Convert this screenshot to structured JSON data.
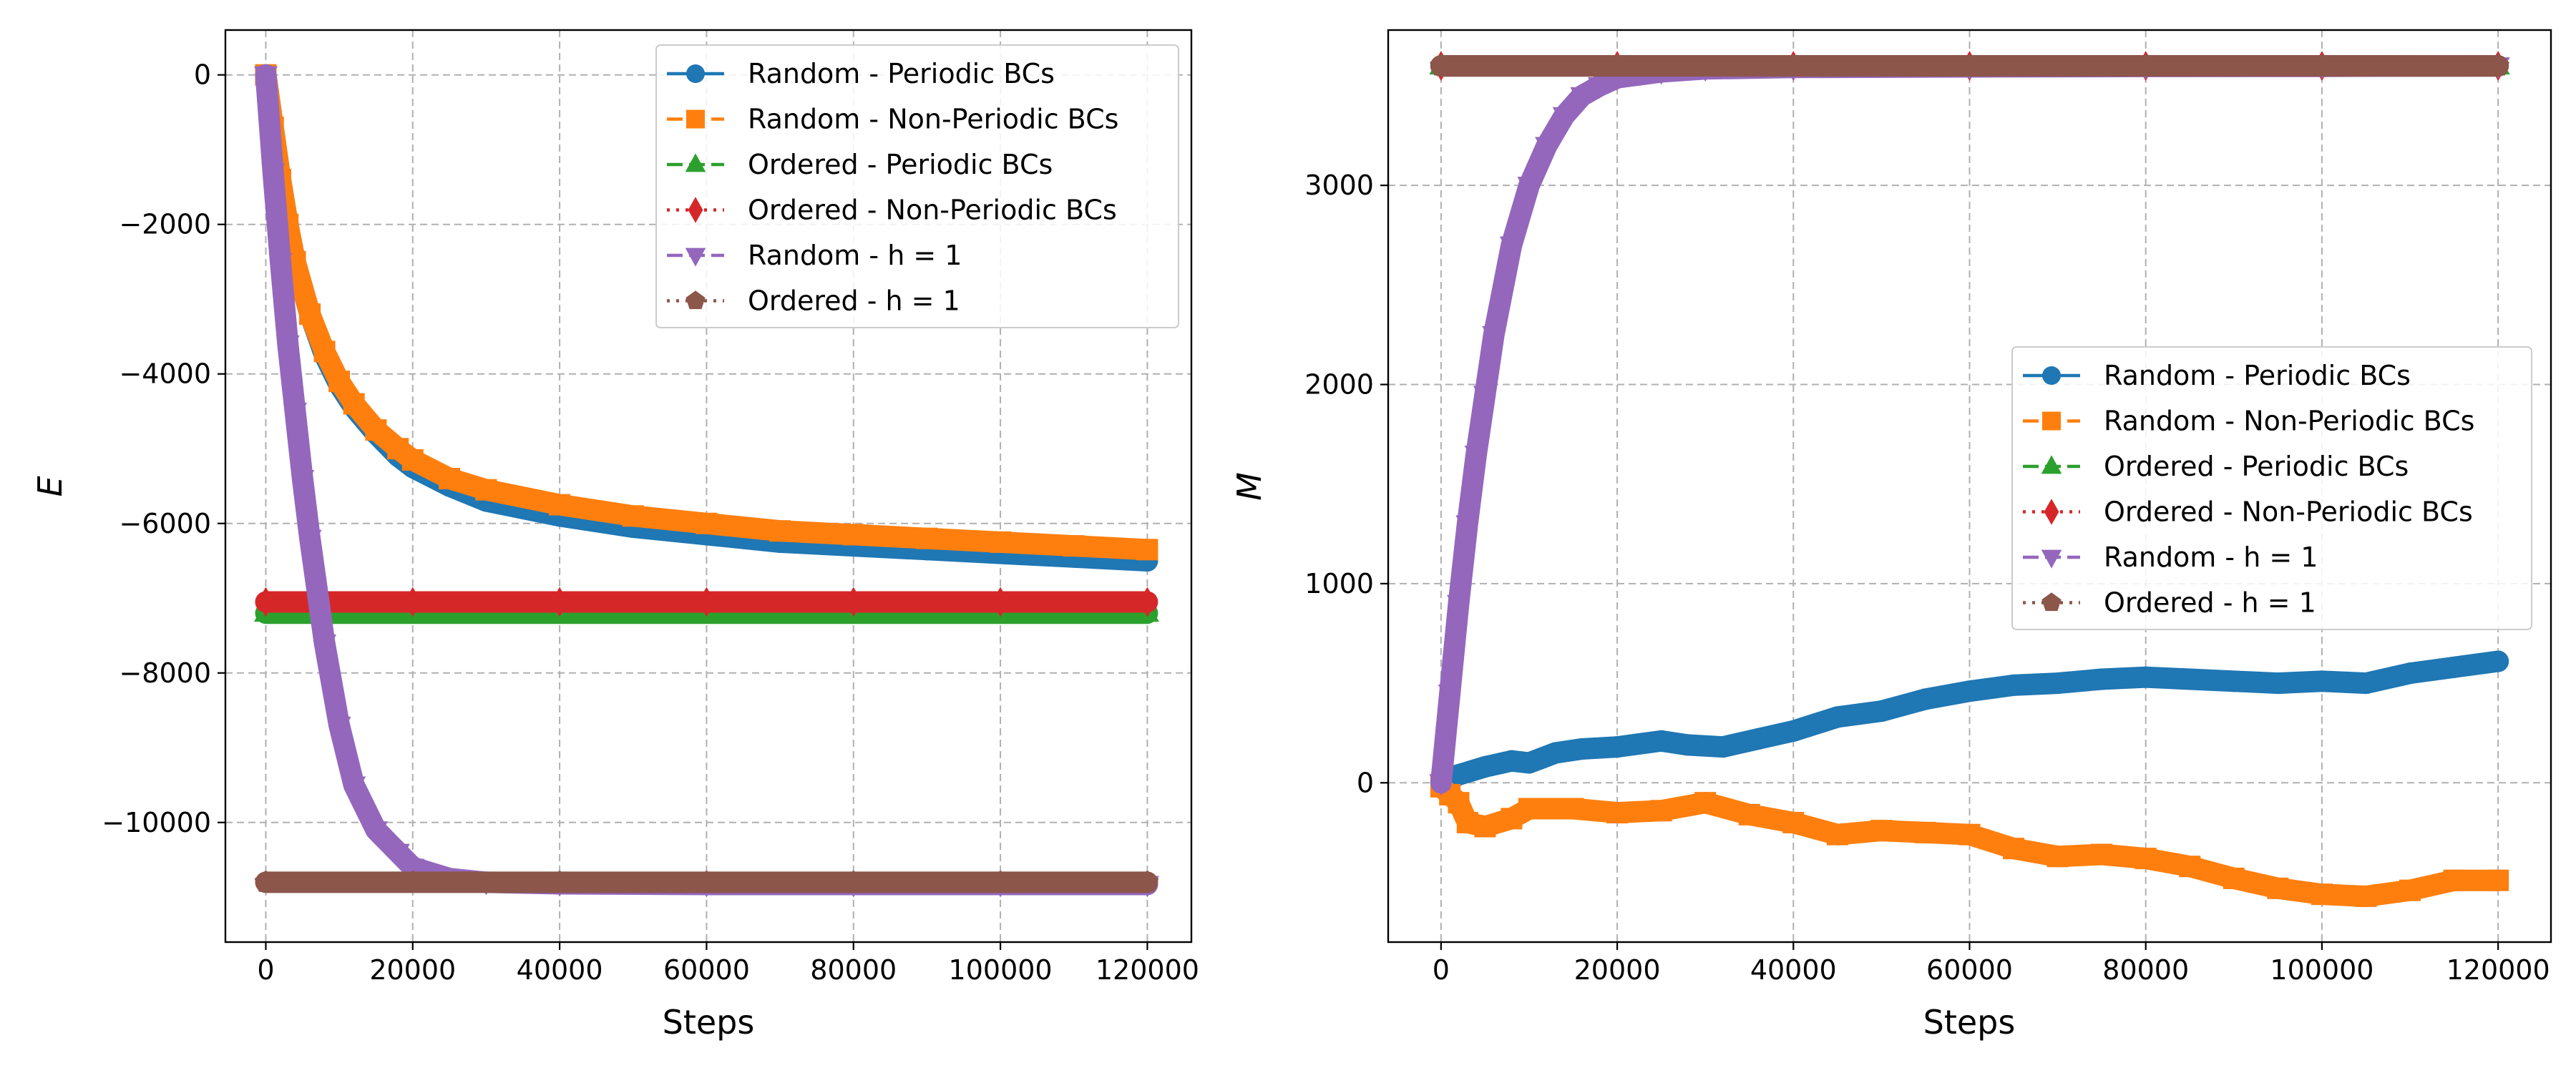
{
  "chart_data": [
    {
      "type": "line",
      "xlabel": "Steps",
      "ylabel": "E",
      "xlim": [
        -5500,
        126000
      ],
      "ylim": [
        -11600,
        600
      ],
      "xticks": [
        0,
        20000,
        40000,
        60000,
        80000,
        100000,
        120000
      ],
      "yticks": [
        0,
        -2000,
        -4000,
        -6000,
        -8000,
        -10000
      ],
      "grid": true,
      "legend_position": "upper right",
      "series": [
        {
          "name": "Random - Periodic BCs",
          "color": "#1f77b4",
          "marker": "circle",
          "linestyle": "solid",
          "x": [
            0,
            1000,
            2000,
            3000,
            4000,
            6000,
            8000,
            10000,
            12000,
            15000,
            18000,
            20000,
            25000,
            30000,
            40000,
            50000,
            60000,
            70000,
            80000,
            90000,
            100000,
            110000,
            120000
          ],
          "y": [
            0,
            -700,
            -1400,
            -2000,
            -2500,
            -3200,
            -3750,
            -4150,
            -4450,
            -4800,
            -5100,
            -5250,
            -5500,
            -5700,
            -5900,
            -6050,
            -6150,
            -6250,
            -6300,
            -6350,
            -6400,
            -6450,
            -6500
          ]
        },
        {
          "name": "Random - Non-Periodic BCs",
          "color": "#ff7f0e",
          "marker": "square",
          "linestyle": "dashed",
          "x": [
            0,
            1000,
            2000,
            3000,
            4000,
            6000,
            8000,
            10000,
            12000,
            15000,
            18000,
            20000,
            25000,
            30000,
            40000,
            50000,
            60000,
            70000,
            80000,
            90000,
            100000,
            110000,
            120000
          ],
          "y": [
            0,
            -700,
            -1400,
            -2000,
            -2500,
            -3200,
            -3700,
            -4100,
            -4400,
            -4750,
            -5000,
            -5150,
            -5400,
            -5550,
            -5750,
            -5900,
            -6000,
            -6100,
            -6150,
            -6200,
            -6250,
            -6300,
            -6350
          ]
        },
        {
          "name": "Ordered - Periodic BCs",
          "color": "#2ca02c",
          "marker": "triangle-up",
          "linestyle": "dashed",
          "x": [
            0,
            20000,
            40000,
            60000,
            80000,
            100000,
            120000
          ],
          "y": [
            -7200,
            -7200,
            -7200,
            -7200,
            -7200,
            -7200,
            -7200
          ]
        },
        {
          "name": "Ordered - Non-Periodic BCs",
          "color": "#d62728",
          "marker": "diamond",
          "linestyle": "dotted",
          "x": [
            0,
            20000,
            40000,
            60000,
            80000,
            100000,
            120000
          ],
          "y": [
            -7050,
            -7050,
            -7050,
            -7050,
            -7050,
            -7050,
            -7050
          ]
        },
        {
          "name": "Random - h = 1",
          "color": "#9467bd",
          "marker": "triangle-down",
          "linestyle": "dashed",
          "x": [
            0,
            1000,
            2000,
            3000,
            4000,
            5000,
            6000,
            8000,
            10000,
            12000,
            15000,
            18000,
            20000,
            25000,
            30000,
            40000,
            60000,
            80000,
            100000,
            120000
          ],
          "y": [
            0,
            -1300,
            -2500,
            -3600,
            -4500,
            -5400,
            -6200,
            -7600,
            -8700,
            -9500,
            -10100,
            -10400,
            -10600,
            -10750,
            -10800,
            -10820,
            -10830,
            -10830,
            -10830,
            -10830
          ]
        },
        {
          "name": "Ordered - h = 1",
          "color": "#8c564b",
          "marker": "pentagon",
          "linestyle": "dotted",
          "x": [
            0,
            20000,
            40000,
            60000,
            80000,
            100000,
            120000
          ],
          "y": [
            -10800,
            -10800,
            -10800,
            -10800,
            -10800,
            -10800,
            -10800
          ]
        }
      ]
    },
    {
      "type": "line",
      "xlabel": "Steps",
      "ylabel": "M",
      "xlim": [
        -6000,
        126000
      ],
      "ylim": [
        -800,
        3780
      ],
      "xticks": [
        0,
        20000,
        40000,
        60000,
        80000,
        100000,
        120000
      ],
      "yticks": [
        0,
        1000,
        2000,
        3000
      ],
      "grid": true,
      "legend_position": "center right",
      "series": [
        {
          "name": "Random - Periodic BCs",
          "color": "#1f77b4",
          "marker": "circle",
          "linestyle": "solid",
          "x": [
            0,
            2000,
            5000,
            8000,
            10000,
            13000,
            16000,
            20000,
            25000,
            28000,
            32000,
            36000,
            40000,
            45000,
            50000,
            55000,
            60000,
            65000,
            70000,
            75000,
            80000,
            85000,
            90000,
            95000,
            100000,
            105000,
            110000,
            115000,
            120000
          ],
          "y": [
            0,
            40,
            80,
            110,
            100,
            150,
            170,
            180,
            210,
            190,
            180,
            220,
            260,
            330,
            360,
            420,
            460,
            490,
            500,
            520,
            530,
            520,
            510,
            500,
            510,
            500,
            550,
            580,
            610
          ]
        },
        {
          "name": "Random - Non-Periodic BCs",
          "color": "#ff7f0e",
          "marker": "square",
          "linestyle": "dashed",
          "x": [
            0,
            1000,
            2000,
            3000,
            5000,
            8000,
            10000,
            15000,
            20000,
            25000,
            30000,
            35000,
            40000,
            45000,
            50000,
            55000,
            60000,
            65000,
            70000,
            75000,
            80000,
            85000,
            90000,
            95000,
            100000,
            105000,
            110000,
            115000,
            120000
          ],
          "y": [
            -20,
            -60,
            -100,
            -200,
            -220,
            -180,
            -130,
            -130,
            -150,
            -140,
            -100,
            -160,
            -200,
            -260,
            -240,
            -250,
            -260,
            -330,
            -370,
            -360,
            -380,
            -420,
            -480,
            -530,
            -560,
            -570,
            -540,
            -490,
            -490
          ]
        },
        {
          "name": "Ordered - Periodic BCs",
          "color": "#2ca02c",
          "marker": "triangle-up",
          "linestyle": "dashed",
          "x": [
            0,
            20000,
            40000,
            60000,
            80000,
            100000,
            120000
          ],
          "y": [
            3600,
            3600,
            3600,
            3600,
            3600,
            3600,
            3600
          ]
        },
        {
          "name": "Ordered - Non-Periodic BCs",
          "color": "#d62728",
          "marker": "diamond",
          "linestyle": "dotted",
          "x": [
            0,
            20000,
            40000,
            60000,
            80000,
            100000,
            120000
          ],
          "y": [
            3600,
            3600,
            3600,
            3600,
            3600,
            3600,
            3600
          ]
        },
        {
          "name": "Random - h = 1",
          "color": "#9467bd",
          "marker": "triangle-down",
          "linestyle": "dashed",
          "x": [
            0,
            1000,
            2000,
            3000,
            4000,
            5000,
            6000,
            8000,
            10000,
            12000,
            14000,
            16000,
            18000,
            20000,
            25000,
            30000,
            40000,
            60000,
            80000,
            100000,
            120000
          ],
          "y": [
            0,
            450,
            900,
            1300,
            1650,
            1950,
            2250,
            2700,
            3000,
            3200,
            3350,
            3450,
            3500,
            3540,
            3570,
            3585,
            3592,
            3595,
            3597,
            3598,
            3600
          ]
        },
        {
          "name": "Ordered - h = 1",
          "color": "#8c564b",
          "marker": "pentagon",
          "linestyle": "dotted",
          "x": [
            0,
            20000,
            40000,
            60000,
            80000,
            100000,
            120000
          ],
          "y": [
            3600,
            3600,
            3600,
            3600,
            3600,
            3600,
            3600
          ]
        }
      ]
    }
  ]
}
